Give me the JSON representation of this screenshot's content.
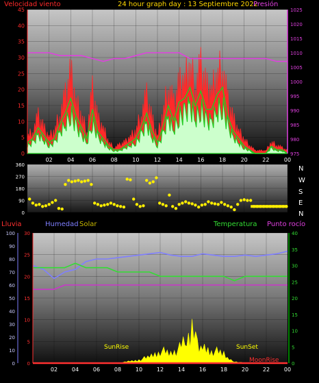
{
  "colors": {
    "wind": "#ff2a2a",
    "gust_avg": "#22cc22",
    "wind_light": "#ccffcc",
    "pressure": "#e040e0",
    "direction": "#ffee00",
    "rain": "#ff3030",
    "humidity": "#7f7fff",
    "solar": "#ffff00",
    "temperature": "#33dd33",
    "dewpoint": "#cc33cc",
    "title": "#ffd700",
    "axis_green": "#00ff00"
  },
  "chart_data": [
    {
      "type": "line",
      "title": "24 hour graph day : 13 Septiembre 2022",
      "left_label": "Velocidad viento",
      "right_label": "Presión",
      "x_ticks": [
        "02",
        "04",
        "06",
        "08",
        "10",
        "12",
        "14",
        "16",
        "18",
        "20",
        "22",
        "00"
      ],
      "y_ticks_left": [
        "0",
        "5",
        "10",
        "15",
        "20",
        "25",
        "30",
        "35",
        "40",
        "45"
      ],
      "y_ticks_right": [
        "975",
        "980",
        "985",
        "990",
        "995",
        "1000",
        "1005",
        "1010",
        "1015",
        "1020",
        "1025"
      ],
      "ylim_left": [
        0,
        45
      ],
      "ylim_right": [
        975,
        1025
      ],
      "xlim": [
        0,
        24
      ],
      "grid": true,
      "series": [
        {
          "key": "wind",
          "x": [
            0,
            0.5,
            1,
            1.5,
            2,
            2.5,
            3,
            3.5,
            4,
            4.5,
            5,
            5.5,
            6,
            6.5,
            7,
            7.5,
            8,
            8.5,
            9,
            9.5,
            10,
            10.5,
            11,
            11.5,
            12,
            12.5,
            13,
            13.5,
            14,
            14.5,
            15,
            15.5,
            16,
            16.5,
            17,
            17.5,
            18,
            18.5,
            19,
            19.5,
            20,
            20.5,
            21,
            21.5,
            22,
            22.5,
            23,
            23.5,
            24
          ],
          "y": [
            6,
            8,
            13,
            9,
            6,
            8,
            14,
            20,
            28,
            18,
            13,
            8,
            22,
            12,
            9,
            4,
            2,
            3,
            4,
            6,
            8,
            14,
            20,
            12,
            6,
            14,
            24,
            17,
            24,
            26,
            30,
            24,
            30,
            23,
            22,
            27,
            31,
            18,
            12,
            8,
            5,
            3,
            1,
            1,
            1,
            4,
            3,
            2,
            1
          ]
        },
        {
          "key": "gust_avg",
          "x": [
            0,
            0.5,
            1,
            1.5,
            2,
            2.5,
            3,
            3.5,
            4,
            4.5,
            5,
            5.5,
            6,
            6.5,
            7,
            7.5,
            8,
            8.5,
            9,
            9.5,
            10,
            10.5,
            11,
            11.5,
            12,
            12.5,
            13,
            13.5,
            14,
            14.5,
            15,
            15.5,
            16,
            16.5,
            17,
            17.5,
            18,
            18.5,
            19,
            19.5,
            20,
            20.5,
            21,
            21.5,
            22,
            22.5,
            23,
            23.5,
            24
          ],
          "y": [
            3,
            4,
            7,
            5,
            3,
            4,
            8,
            11,
            15,
            10,
            7,
            4,
            12,
            6,
            4,
            2,
            1,
            1,
            2,
            3,
            4,
            7,
            11,
            6,
            3,
            7,
            13,
            9,
            14,
            15,
            18,
            13,
            17,
            12,
            12,
            16,
            18,
            10,
            6,
            4,
            2,
            1,
            0,
            0,
            0,
            2,
            1,
            1,
            0
          ]
        },
        {
          "key": "pressure",
          "x": [
            0,
            1,
            2,
            3,
            4,
            5,
            6,
            7,
            8,
            9,
            10,
            11,
            12,
            13,
            14,
            15,
            16,
            17,
            18,
            19,
            20,
            21,
            22,
            23,
            24
          ],
          "y": [
            1010,
            1010,
            1010,
            1009,
            1009,
            1009,
            1008,
            1007,
            1008,
            1008,
            1009,
            1010,
            1010,
            1010,
            1010,
            1008,
            1008,
            1008,
            1008,
            1008,
            1008,
            1008,
            1008,
            1007,
            1007
          ]
        }
      ]
    },
    {
      "type": "scatter",
      "right_labels": [
        "N",
        "W",
        "S",
        "E",
        "N"
      ],
      "y_ticks": [
        "0",
        "45",
        "90",
        "135",
        "180",
        "225",
        "270",
        "315",
        "360"
      ],
      "ylim": [
        0,
        360
      ],
      "xlim": [
        0,
        24
      ],
      "series": [
        {
          "key": "direction",
          "x": [
            0.2,
            0.5,
            0.8,
            1.1,
            1.4,
            1.7,
            2.0,
            2.3,
            2.6,
            2.9,
            3.2,
            3.5,
            3.8,
            4.1,
            4.4,
            4.7,
            5.0,
            5.3,
            5.6,
            5.9,
            6.2,
            6.5,
            6.8,
            7.1,
            7.4,
            7.7,
            8.0,
            8.3,
            8.6,
            8.9,
            9.2,
            9.5,
            9.8,
            10.1,
            10.4,
            10.7,
            11.0,
            11.3,
            11.6,
            11.9,
            12.2,
            12.5,
            12.8,
            13.1,
            13.4,
            13.7,
            14.0,
            14.3,
            14.6,
            14.9,
            15.2,
            15.5,
            15.8,
            16.1,
            16.4,
            16.7,
            17.0,
            17.3,
            17.6,
            17.9,
            18.2,
            18.5,
            18.8,
            19.1,
            19.4,
            19.7,
            20.0,
            20.3,
            20.6,
            20.9,
            21.2,
            21.5,
            21.8,
            22.1,
            22.4,
            22.7,
            23.0,
            23.3,
            23.6,
            23.9
          ],
          "y": [
            100,
            70,
            55,
            60,
            45,
            50,
            60,
            75,
            90,
            30,
            25,
            210,
            240,
            230,
            235,
            240,
            230,
            235,
            240,
            210,
            70,
            60,
            50,
            55,
            60,
            70,
            60,
            50,
            45,
            40,
            250,
            245,
            100,
            60,
            45,
            50,
            240,
            220,
            230,
            260,
            70,
            60,
            50,
            130,
            45,
            30,
            60,
            70,
            80,
            70,
            65,
            55,
            40,
            55,
            60,
            80,
            70,
            65,
            60,
            75,
            60,
            50,
            40,
            20,
            60,
            90,
            95,
            90,
            90,
            45,
            45,
            45,
            45,
            45,
            45,
            45,
            45,
            45,
            45,
            45
          ]
        }
      ]
    },
    {
      "type": "line",
      "left_labels": {
        "rain": "Lluvia",
        "humidity": "Humedad",
        "solar": "Solar"
      },
      "right_labels": {
        "temperature": "Temperatura",
        "dewpoint": "Punto rocío"
      },
      "annotations": [
        "SunRise",
        "SunSet",
        "MoonRise"
      ],
      "x_ticks": [
        "02",
        "04",
        "06",
        "08",
        "10",
        "12",
        "14",
        "16",
        "18",
        "20",
        "22",
        "00"
      ],
      "y_ticks_humidity": [
        "0",
        "10",
        "20",
        "30",
        "40",
        "50",
        "60",
        "70",
        "80",
        "90",
        "100"
      ],
      "y_ticks_temp": [
        "0",
        "5",
        "10",
        "15",
        "20",
        "25",
        "30"
      ],
      "y_ticks_right": [
        "0",
        "5",
        "10",
        "15",
        "20",
        "25",
        "30",
        "35",
        "40"
      ],
      "ylim_humidity": [
        0,
        100
      ],
      "ylim_temp": [
        0,
        30
      ],
      "ylim_right": [
        0,
        40
      ],
      "xlim": [
        0,
        24
      ],
      "series": [
        {
          "key": "humidity",
          "x": [
            0,
            1,
            2,
            3,
            4,
            5,
            6,
            7,
            8,
            9,
            10,
            11,
            12,
            13,
            14,
            15,
            16,
            17,
            18,
            19,
            20,
            21,
            22,
            23,
            24
          ],
          "y": [
            75,
            72,
            65,
            70,
            72,
            78,
            80,
            80,
            81,
            82,
            83,
            84,
            85,
            83,
            82,
            82,
            84,
            83,
            82,
            82,
            83,
            82,
            83,
            84,
            86
          ]
        },
        {
          "key": "temperature",
          "x": [
            0,
            1,
            2,
            3,
            4,
            5,
            6,
            7,
            8,
            9,
            10,
            11,
            12,
            13,
            14,
            15,
            16,
            17,
            18,
            19,
            20,
            21,
            22,
            23,
            24
          ],
          "y": [
            22,
            22,
            22,
            22,
            23,
            22,
            22,
            22,
            21,
            21,
            21,
            21,
            20,
            20,
            20,
            20,
            20,
            20,
            20,
            19,
            20,
            20,
            20,
            20,
            20
          ]
        },
        {
          "key": "dewpoint",
          "x": [
            0,
            1,
            2,
            3,
            4,
            5,
            6,
            7,
            8,
            9,
            10,
            11,
            12,
            13,
            14,
            15,
            16,
            17,
            18,
            19,
            20,
            21,
            22,
            23,
            24
          ],
          "y": [
            17,
            17,
            17,
            18,
            18,
            18,
            18,
            18,
            18,
            18,
            18,
            18,
            18,
            18,
            18,
            18,
            18,
            18,
            18,
            18,
            18,
            18,
            18,
            18,
            18
          ]
        },
        {
          "key": "solar",
          "x": [
            0,
            6,
            7,
            8,
            9,
            10,
            11,
            12,
            13,
            14,
            14.5,
            15,
            15.5,
            16,
            17,
            18,
            18.5,
            19,
            20,
            24
          ],
          "y": [
            0,
            0,
            0,
            0,
            0.5,
            1,
            2,
            4,
            3,
            5,
            8,
            10,
            7,
            5,
            4,
            3,
            1,
            0.5,
            0,
            0
          ]
        },
        {
          "key": "rain",
          "x": [
            0,
            24
          ],
          "y": [
            0,
            0
          ]
        }
      ]
    }
  ]
}
